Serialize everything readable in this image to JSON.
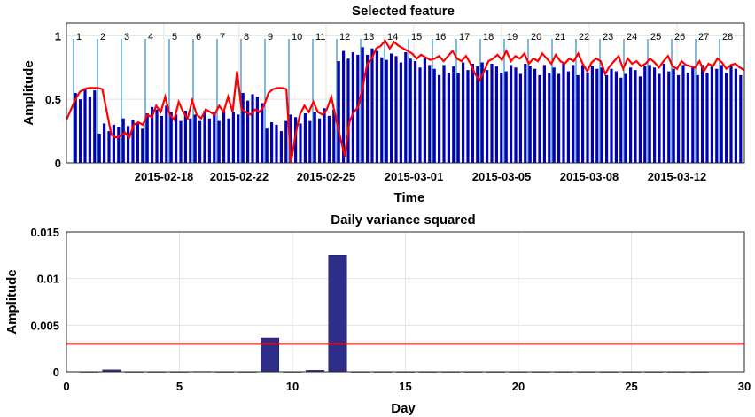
{
  "chart_data": [
    {
      "type": "bar",
      "title": "Selected feature",
      "xlabel": "Time",
      "ylabel": "Amplitude",
      "ylim": [
        0,
        1.1
      ],
      "yticks": [
        "0",
        "0.5",
        "1"
      ],
      "xtick_labels": [
        "2015-02-18",
        "2015-02-22",
        "2015-02-25",
        "2015-03-01",
        "2015-03-05",
        "2015-03-08",
        "2015-03-12"
      ],
      "day_labels": [
        "1",
        "2",
        "3",
        "4",
        "5",
        "6",
        "7",
        "8",
        "9",
        "10",
        "11",
        "12",
        "13",
        "14",
        "15",
        "16",
        "17",
        "18",
        "19",
        "20",
        "21",
        "22",
        "23",
        "24",
        "25",
        "26",
        "27",
        "28"
      ],
      "grid": true,
      "colors": {
        "bars": "#0000b4",
        "line": "#ff0000",
        "day_markers": "#0072bd"
      },
      "series": [
        {
          "name": "",
          "kind": "bar",
          "daily_levels": [
            0.55,
            0.28,
            0.32,
            0.42,
            0.38,
            0.38,
            0.38,
            0.52,
            0.3,
            0.36,
            0.4,
            0.85,
            0.88,
            0.84,
            0.8,
            0.74,
            0.76,
            0.76,
            0.75,
            0.74,
            0.75,
            0.74,
            0.72,
            0.73,
            0.75,
            0.74,
            0.74,
            0.74
          ]
        },
        {
          "name": "",
          "kind": "line",
          "color": "#ff0000",
          "y": [
            0.34,
            0.42,
            0.5,
            0.56,
            0.58,
            0.59,
            0.59,
            0.59,
            0.58,
            0.4,
            0.22,
            0.2,
            0.21,
            0.24,
            0.2,
            0.3,
            0.32,
            0.3,
            0.38,
            0.36,
            0.45,
            0.4,
            0.52,
            0.38,
            0.34,
            0.48,
            0.4,
            0.35,
            0.49,
            0.38,
            0.35,
            0.42,
            0.4,
            0.38,
            0.45,
            0.4,
            0.52,
            0.4,
            0.72,
            0.42,
            0.4,
            0.38,
            0.42,
            0.4,
            0.45,
            0.55,
            0.58,
            0.59,
            0.59,
            0.58,
            0.0,
            0.22,
            0.38,
            0.45,
            0.4,
            0.48,
            0.4,
            0.38,
            0.42,
            0.52,
            0.35,
            0.2,
            0.05,
            0.32,
            0.4,
            0.44,
            0.6,
            0.78,
            0.82,
            0.9,
            0.92,
            0.96,
            0.9,
            0.95,
            0.92,
            0.9,
            0.88,
            0.86,
            0.82,
            0.85,
            0.83,
            0.81,
            0.82,
            0.84,
            0.8,
            0.84,
            0.88,
            0.82,
            0.8,
            0.84,
            0.78,
            0.7,
            0.65,
            0.72,
            0.8,
            0.82,
            0.85,
            0.81,
            0.88,
            0.8,
            0.84,
            0.82,
            0.86,
            0.78,
            0.82,
            0.8,
            0.86,
            0.82,
            0.78,
            0.85,
            0.8,
            0.78,
            0.82,
            0.8,
            0.86,
            0.78,
            0.72,
            0.79,
            0.82,
            0.8,
            0.7,
            0.76,
            0.8,
            0.84,
            0.74,
            0.82,
            0.78,
            0.8,
            0.76,
            0.78,
            0.82,
            0.79,
            0.75,
            0.8,
            0.84,
            0.76,
            0.74,
            0.8,
            0.77,
            0.76,
            0.75,
            0.8,
            0.72,
            0.78,
            0.76,
            0.82,
            0.79,
            0.74,
            0.77,
            0.78,
            0.75,
            0.73
          ]
        }
      ]
    },
    {
      "type": "bar",
      "title": "Daily variance squared",
      "xlabel": "Day",
      "ylabel": "Amplitude",
      "xlim": [
        0,
        30
      ],
      "ylim": [
        0,
        0.015
      ],
      "xticks": [
        "0",
        "5",
        "10",
        "15",
        "20",
        "25",
        "30"
      ],
      "yticks": [
        "0",
        "0.005",
        "0.01",
        "0.015"
      ],
      "grid": true,
      "categories": [
        1,
        2,
        3,
        4,
        5,
        6,
        7,
        8,
        9,
        10,
        11,
        12,
        13,
        14,
        15,
        16,
        17,
        18,
        19,
        20,
        21,
        22,
        23,
        24,
        25,
        26,
        27,
        28
      ],
      "values": [
        1e-05,
        0.0002,
        1e-05,
        1e-05,
        1e-05,
        3e-05,
        1e-05,
        1e-05,
        0.0036,
        1e-05,
        0.00015,
        0.0125,
        1e-05,
        1e-05,
        1e-05,
        1e-05,
        1e-05,
        1e-05,
        1e-05,
        1e-05,
        1e-05,
        1e-05,
        1e-05,
        1e-05,
        1e-05,
        1e-05,
        1e-05,
        1e-05
      ],
      "threshold": 0.003,
      "colors": {
        "bars": "#2e2e8a",
        "threshold": "#ff0000"
      }
    }
  ]
}
